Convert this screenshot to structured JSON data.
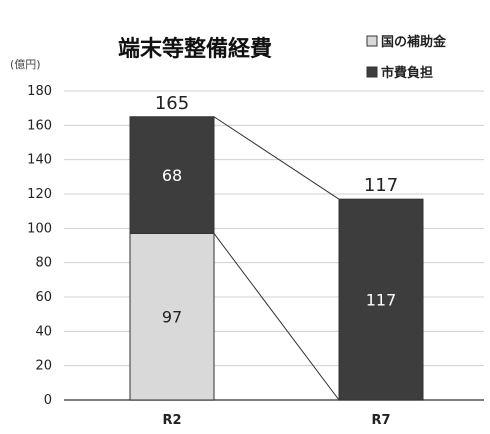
{
  "chart_data": {
    "type": "bar",
    "stacked": true,
    "title": "端末等整備経費",
    "ylabel": "(億円)",
    "ylim": [
      0,
      180
    ],
    "yticks": [
      0,
      20,
      40,
      60,
      80,
      100,
      120,
      140,
      160,
      180
    ],
    "categories": [
      "R2",
      "R7"
    ],
    "totals": [
      "165",
      "117"
    ],
    "series": [
      {
        "name": "国の補助金",
        "values": [
          97,
          0
        ],
        "color": "#d9d9d9",
        "label_color": "#222222"
      },
      {
        "name": "市費負担",
        "values": [
          68,
          117
        ],
        "color": "#3d3d3d",
        "label_color": "#ffffff"
      }
    ],
    "legend_position": "top-right",
    "grid": true,
    "connector_lines": true
  }
}
